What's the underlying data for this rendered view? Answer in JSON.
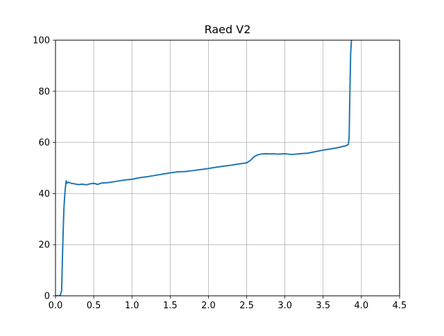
{
  "chart_data": {
    "type": "line",
    "title": "Raed V2",
    "xlabel": "",
    "ylabel": "",
    "xlim": [
      0,
      4.5
    ],
    "ylim": [
      0,
      100
    ],
    "x_ticks": [
      "0.0",
      "0.5",
      "1.0",
      "1.5",
      "2.0",
      "2.5",
      "3.0",
      "3.5",
      "4.0",
      "4.5"
    ],
    "y_ticks": [
      "0",
      "20",
      "40",
      "60",
      "80",
      "100"
    ],
    "grid": true,
    "legend": "none",
    "series": [
      {
        "color": "#1f77b4",
        "points": [
          [
            0.0,
            0.0
          ],
          [
            0.06,
            0.0
          ],
          [
            0.08,
            2.0
          ],
          [
            0.09,
            14.0
          ],
          [
            0.1,
            25.0
          ],
          [
            0.11,
            34.0
          ],
          [
            0.12,
            39.0
          ],
          [
            0.13,
            42.5
          ],
          [
            0.14,
            45.0
          ],
          [
            0.15,
            44.0
          ],
          [
            0.17,
            44.5
          ],
          [
            0.2,
            44.0
          ],
          [
            0.25,
            43.8
          ],
          [
            0.3,
            43.5
          ],
          [
            0.35,
            43.7
          ],
          [
            0.4,
            43.4
          ],
          [
            0.45,
            43.8
          ],
          [
            0.5,
            44.0
          ],
          [
            0.55,
            43.6
          ],
          [
            0.6,
            44.1
          ],
          [
            0.7,
            44.3
          ],
          [
            0.8,
            44.8
          ],
          [
            0.9,
            45.3
          ],
          [
            1.0,
            45.6
          ],
          [
            1.1,
            46.2
          ],
          [
            1.2,
            46.6
          ],
          [
            1.3,
            47.1
          ],
          [
            1.4,
            47.6
          ],
          [
            1.5,
            48.1
          ],
          [
            1.6,
            48.5
          ],
          [
            1.7,
            48.6
          ],
          [
            1.8,
            49.0
          ],
          [
            1.9,
            49.4
          ],
          [
            2.0,
            49.8
          ],
          [
            2.1,
            50.3
          ],
          [
            2.2,
            50.7
          ],
          [
            2.3,
            51.1
          ],
          [
            2.4,
            51.6
          ],
          [
            2.5,
            52.0
          ],
          [
            2.55,
            53.0
          ],
          [
            2.6,
            54.5
          ],
          [
            2.65,
            55.2
          ],
          [
            2.7,
            55.5
          ],
          [
            2.75,
            55.6
          ],
          [
            2.8,
            55.5
          ],
          [
            2.85,
            55.6
          ],
          [
            2.9,
            55.4
          ],
          [
            2.95,
            55.5
          ],
          [
            3.0,
            55.6
          ],
          [
            3.05,
            55.4
          ],
          [
            3.1,
            55.3
          ],
          [
            3.2,
            55.6
          ],
          [
            3.3,
            55.8
          ],
          [
            3.4,
            56.4
          ],
          [
            3.5,
            57.0
          ],
          [
            3.6,
            57.5
          ],
          [
            3.7,
            58.0
          ],
          [
            3.75,
            58.4
          ],
          [
            3.8,
            58.7
          ],
          [
            3.83,
            59.2
          ],
          [
            3.84,
            62.0
          ],
          [
            3.85,
            80.0
          ],
          [
            3.86,
            95.0
          ],
          [
            3.87,
            100.0
          ]
        ]
      }
    ]
  }
}
